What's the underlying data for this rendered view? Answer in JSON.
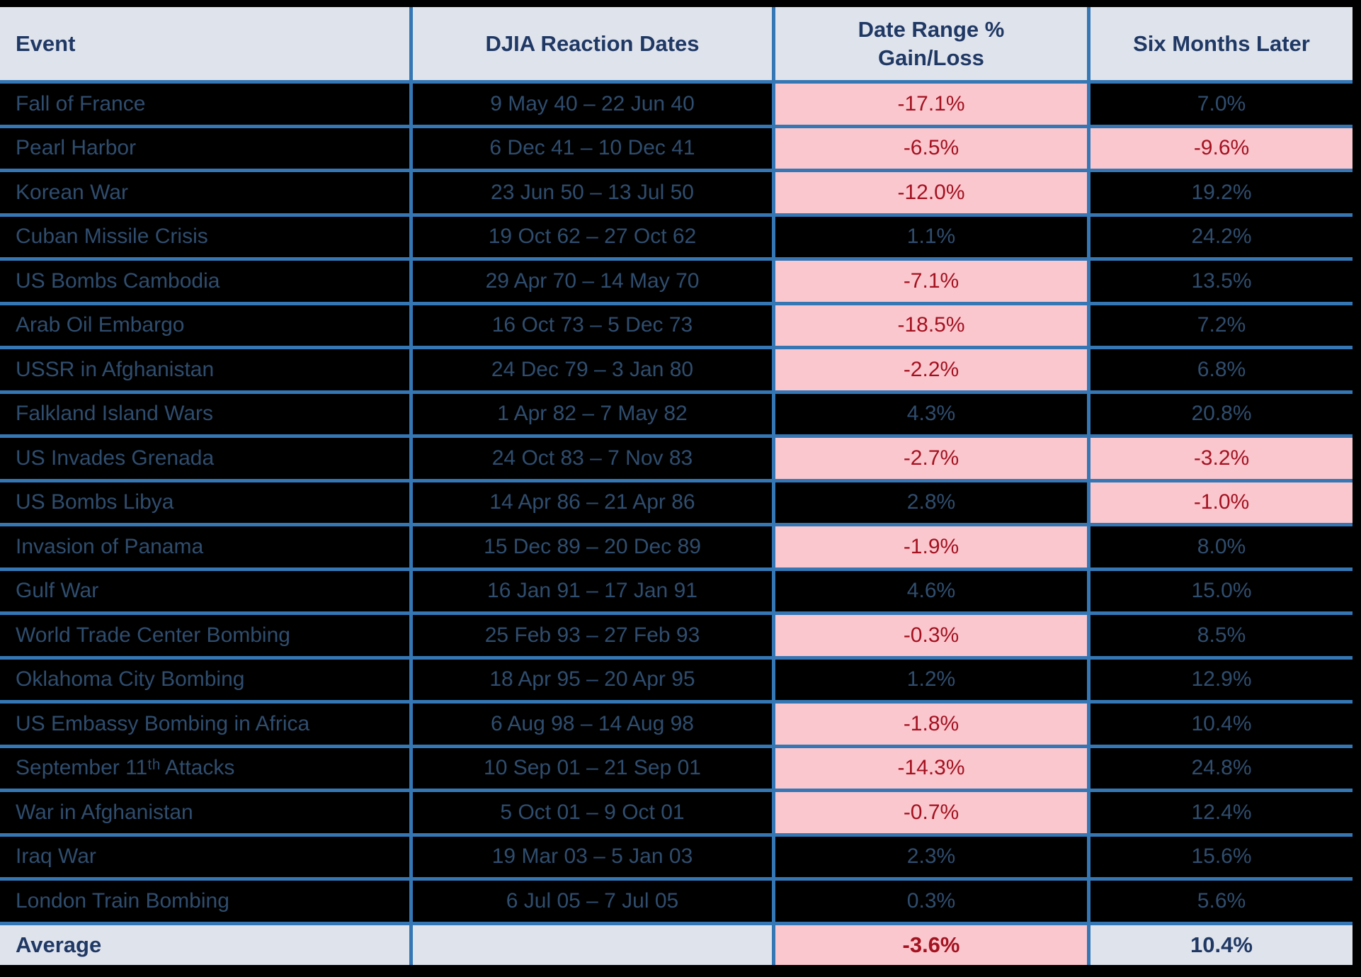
{
  "chart_data": {
    "type": "table",
    "title": "DJIA reaction to historical crisis events",
    "columns": [
      "Event",
      "DJIA Reaction Dates",
      "Date Range %\nGain/Loss",
      "Six Months Later"
    ],
    "rows": [
      {
        "event": "Fall of France",
        "dates": "9 May 40 – 22 Jun 40",
        "range": "-17.1%",
        "range_negative": true,
        "six_months": "7.0%",
        "six_negative": false
      },
      {
        "event": "Pearl Harbor",
        "dates": "6 Dec 41 – 10 Dec 41",
        "range": "-6.5%",
        "range_negative": true,
        "six_months": "-9.6%",
        "six_negative": true
      },
      {
        "event": "Korean War",
        "dates": "23 Jun 50 – 13 Jul 50",
        "range": "-12.0%",
        "range_negative": true,
        "six_months": "19.2%",
        "six_negative": false
      },
      {
        "event": "Cuban Missile Crisis",
        "dates": "19 Oct 62 – 27 Oct 62",
        "range": "1.1%",
        "range_negative": false,
        "six_months": "24.2%",
        "six_negative": false
      },
      {
        "event": "US Bombs Cambodia",
        "dates": "29 Apr 70 – 14 May 70",
        "range": "-7.1%",
        "range_negative": true,
        "six_months": "13.5%",
        "six_negative": false
      },
      {
        "event": "Arab Oil Embargo",
        "dates": "16 Oct 73 – 5 Dec 73",
        "range": "-18.5%",
        "range_negative": true,
        "six_months": "7.2%",
        "six_negative": false
      },
      {
        "event": "USSR in Afghanistan",
        "dates": "24 Dec 79 – 3 Jan 80",
        "range": "-2.2%",
        "range_negative": true,
        "six_months": "6.8%",
        "six_negative": false
      },
      {
        "event": "Falkland Island Wars",
        "dates": "1 Apr 82 – 7 May 82",
        "range": "4.3%",
        "range_negative": false,
        "six_months": "20.8%",
        "six_negative": false
      },
      {
        "event": "US Invades Grenada",
        "dates": "24 Oct 83 – 7 Nov 83",
        "range": "-2.7%",
        "range_negative": true,
        "six_months": "-3.2%",
        "six_negative": true
      },
      {
        "event": "US Bombs Libya",
        "dates": "14 Apr 86 – 21 Apr 86",
        "range": "2.8%",
        "range_negative": false,
        "six_months": "-1.0%",
        "six_negative": true
      },
      {
        "event": "Invasion of Panama",
        "dates": "15 Dec 89 – 20 Dec 89",
        "range": "-1.9%",
        "range_negative": true,
        "six_months": "8.0%",
        "six_negative": false
      },
      {
        "event": "Gulf War",
        "dates": "16 Jan 91 – 17 Jan 91",
        "range": "4.6%",
        "range_negative": false,
        "six_months": "15.0%",
        "six_negative": false
      },
      {
        "event": "World Trade Center Bombing",
        "dates": "25 Feb 93 – 27 Feb 93",
        "range": "-0.3%",
        "range_negative": true,
        "six_months": "8.5%",
        "six_negative": false
      },
      {
        "event": "Oklahoma City Bombing",
        "dates": "18 Apr 95 – 20 Apr 95",
        "range": "1.2%",
        "range_negative": false,
        "six_months": "12.9%",
        "six_negative": false
      },
      {
        "event": "US Embassy Bombing in Africa",
        "dates": "6 Aug 98 – 14 Aug 98",
        "range": "-1.8%",
        "range_negative": true,
        "six_months": "10.4%",
        "six_negative": false
      },
      {
        "event": "September 11ᵗʰ Attacks",
        "dates": "10 Sep 01 – 21 Sep 01",
        "range": "-14.3%",
        "range_negative": true,
        "six_months": "24.8%",
        "six_negative": false
      },
      {
        "event": "War in Afghanistan",
        "dates": "5 Oct 01 – 9 Oct 01",
        "range": "-0.7%",
        "range_negative": true,
        "six_months": "12.4%",
        "six_negative": false
      },
      {
        "event": "Iraq War",
        "dates": "19 Mar 03 – 5 Jan 03",
        "range": "2.3%",
        "range_negative": false,
        "six_months": "15.6%",
        "six_negative": false
      },
      {
        "event": "London Train Bombing",
        "dates": "6 Jul 05 – 7 Jul 05",
        "range": "0.3%",
        "range_negative": false,
        "six_months": "5.6%",
        "six_negative": false
      }
    ],
    "footer": {
      "label": "Average",
      "dates": "",
      "range": "-3.6%",
      "range_negative": true,
      "six_months": "10.4%",
      "six_negative": false
    }
  },
  "colors": {
    "divider_blue": "#3577B4",
    "header_bg": "#DFE3EC",
    "header_text": "#1F3864",
    "row_bg": "#000000",
    "row_text": "#2F4D6E",
    "negative_bg": "#FBC7CE",
    "negative_text": "#A31220"
  }
}
